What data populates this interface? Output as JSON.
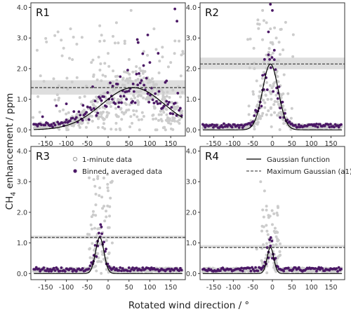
{
  "chart_data": {
    "type": "scatter",
    "xlabel": "Rotated wind direction / °",
    "ylabel": "CH4 enhancement / ppm",
    "ylabel_parts": {
      "pre": "CH",
      "sub": "4",
      "post": " enhancement / ppm"
    },
    "xlim": [
      -185,
      185
    ],
    "ylim": [
      -0.2,
      4.15
    ],
    "x_ticks": [
      -150,
      -100,
      -50,
      0,
      50,
      100,
      150
    ],
    "y_ticks": [
      0.0,
      1.0,
      2.0,
      3.0,
      4.0
    ],
    "y_tick_labels": [
      "0.0",
      "1.0",
      "2.0",
      "3.0",
      "4.0"
    ],
    "grid": false,
    "legend": {
      "minute_label": "1-minute data",
      "binned_label": "Binned, averaged data",
      "gaussian_label": "Gaussian function",
      "max_label": "Maximum Gaussian (a1)"
    },
    "colors": {
      "minute": "#cccccc",
      "binned": "#4b1866",
      "gaussian": "#000000",
      "max_line": "#555555",
      "max_band": "#dedede"
    },
    "panels": [
      {
        "label": "R1",
        "gaussian": {
          "a1": 1.38,
          "center": 60,
          "sigma": 75
        },
        "max_band": [
          1.15,
          1.62
        ],
        "binned_outliers": [
          [
            95,
            3.1
          ],
          [
            160,
            3.95
          ],
          [
            165,
            3.55
          ],
          [
            70,
            2.95
          ],
          [
            72,
            2.85
          ],
          [
            120,
            2.5
          ],
          [
            85,
            2.1
          ],
          [
            100,
            2.2
          ],
          [
            140,
            1.6
          ],
          [
            60,
            1.5
          ],
          [
            45,
            1.25
          ],
          [
            30,
            1.1
          ],
          [
            10,
            1.0
          ],
          [
            -100,
            0.85
          ],
          [
            -60,
            0.8
          ],
          [
            25,
            0.75
          ]
        ],
        "minute_outliers": [
          [
            -170,
            2.6
          ],
          [
            -120,
            3.2
          ],
          [
            -90,
            3.3
          ],
          [
            -75,
            2.8
          ],
          [
            -40,
            2.2
          ],
          [
            -20,
            3.4
          ],
          [
            0,
            2.5
          ],
          [
            20,
            3.5
          ],
          [
            40,
            2.9
          ],
          [
            55,
            3.9
          ],
          [
            110,
            3.3
          ],
          [
            130,
            2.7
          ],
          [
            150,
            2.2
          ],
          [
            170,
            2.9
          ]
        ]
      },
      {
        "label": "R2",
        "gaussian": {
          "a1": 2.15,
          "center": -5,
          "sigma": 20
        },
        "max_band": [
          1.98,
          2.36
        ],
        "binned_outliers": [
          [
            -5,
            4.1
          ],
          [
            0,
            3.9
          ],
          [
            -10,
            3.2
          ],
          [
            5,
            2.6
          ],
          [
            -20,
            2.3
          ],
          [
            -25,
            1.3
          ],
          [
            15,
            1.2
          ],
          [
            20,
            0.4
          ]
        ],
        "minute_outliers": [
          [
            -25,
            3.9
          ],
          [
            -15,
            3.5
          ],
          [
            -5,
            3.3
          ],
          [
            10,
            3.0
          ],
          [
            30,
            1.8
          ],
          [
            -40,
            1.6
          ],
          [
            50,
            0.7
          ],
          [
            -60,
            0.5
          ]
        ]
      },
      {
        "label": "R3",
        "gaussian": {
          "a1": 1.18,
          "center": -20,
          "sigma": 10
        },
        "max_band": [
          1.14,
          1.24
        ],
        "binned_outliers": [
          [
            -18,
            1.6
          ],
          [
            -15,
            1.3
          ],
          [
            -25,
            0.9
          ],
          [
            -5,
            0.8
          ],
          [
            -35,
            0.4
          ]
        ],
        "minute_outliers": [
          [
            -25,
            3.1
          ],
          [
            -20,
            2.8
          ],
          [
            -15,
            2.5
          ],
          [
            -10,
            2.2
          ],
          [
            -30,
            1.9
          ],
          [
            0,
            1.5
          ],
          [
            10,
            1.0
          ],
          [
            -45,
            0.8
          ]
        ]
      },
      {
        "label": "R4",
        "gaussian": {
          "a1": 0.85,
          "center": -5,
          "sigma": 8.5
        },
        "max_band": [
          0.85,
          0.93
        ],
        "binned_outliers": [
          [
            -5,
            0.9
          ],
          [
            -10,
            0.7
          ],
          [
            0,
            0.5
          ]
        ],
        "minute_outliers": [
          [
            -30,
            3.0
          ],
          [
            -20,
            2.7
          ],
          [
            -15,
            2.2
          ],
          [
            -10,
            1.9
          ],
          [
            0,
            1.6
          ],
          [
            10,
            1.2
          ],
          [
            -40,
            0.8
          ],
          [
            20,
            0.6
          ]
        ]
      }
    ]
  }
}
